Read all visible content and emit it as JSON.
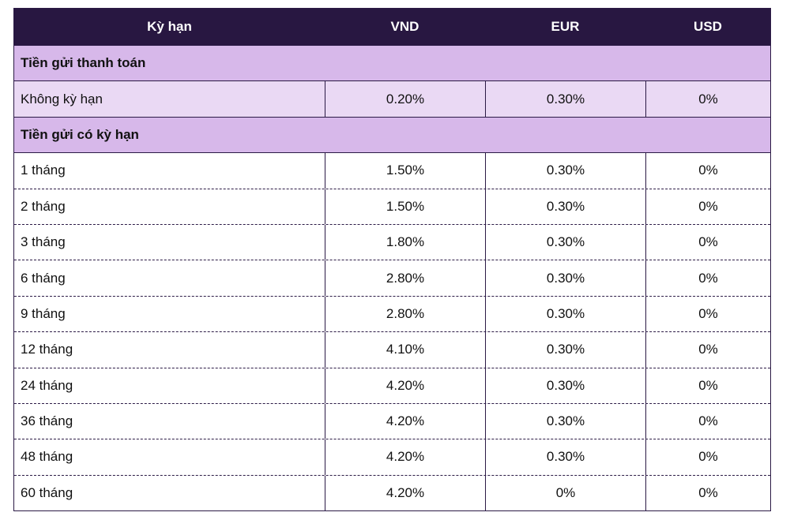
{
  "header": {
    "col_term": "Kỳ hạn",
    "col_vnd": "VND",
    "col_eur": "EUR",
    "col_usd": "USD"
  },
  "colors": {
    "header_bg": "#281741",
    "section_bg": "#d7b8ea",
    "highlight_bg": "#ead9f4",
    "border": "#2b1a45"
  },
  "payment_section": {
    "title": "Tiền gửi thanh toán",
    "rows": [
      {
        "term": "Không kỳ hạn",
        "vnd": "0.20%",
        "eur": "0.30%",
        "usd": "0%"
      }
    ]
  },
  "term_section": {
    "title": "Tiền gửi có kỳ hạn",
    "rows": [
      {
        "term": "1 tháng",
        "vnd": "1.50%",
        "eur": "0.30%",
        "usd": "0%"
      },
      {
        "term": "2 tháng",
        "vnd": "1.50%",
        "eur": "0.30%",
        "usd": "0%"
      },
      {
        "term": "3 tháng",
        "vnd": "1.80%",
        "eur": "0.30%",
        "usd": "0%"
      },
      {
        "term": "6 tháng",
        "vnd": "2.80%",
        "eur": "0.30%",
        "usd": "0%"
      },
      {
        "term": "9 tháng",
        "vnd": "2.80%",
        "eur": "0.30%",
        "usd": "0%"
      },
      {
        "term": "12 tháng",
        "vnd": "4.10%",
        "eur": "0.30%",
        "usd": "0%"
      },
      {
        "term": "24 tháng",
        "vnd": "4.20%",
        "eur": "0.30%",
        "usd": "0%"
      },
      {
        "term": "36 tháng",
        "vnd": "4.20%",
        "eur": "0.30%",
        "usd": "0%"
      },
      {
        "term": "48 tháng",
        "vnd": "4.20%",
        "eur": "0.30%",
        "usd": "0%"
      },
      {
        "term": "60 tháng",
        "vnd": "4.20%",
        "eur": "0%",
        "usd": "0%"
      }
    ]
  }
}
